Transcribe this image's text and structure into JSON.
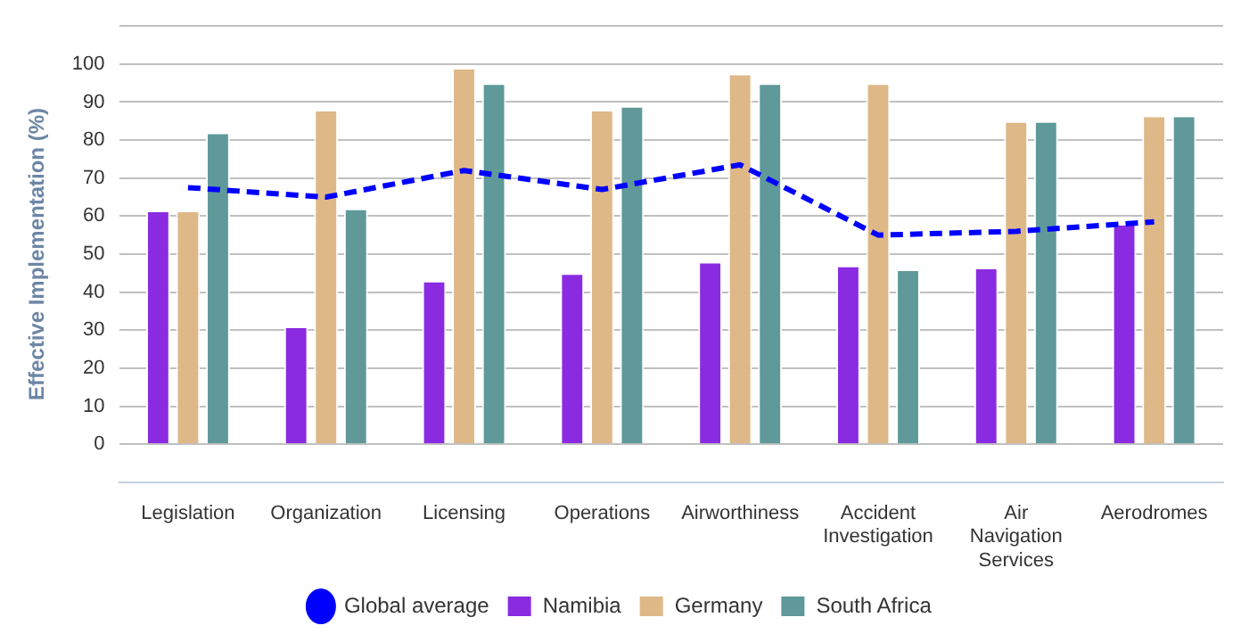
{
  "chart_data": {
    "type": "bar",
    "ylabel": "Effective Implementation (%)",
    "categories": [
      "Legislation",
      "Organization",
      "Licensing",
      "Operations",
      "Airworthiness",
      "Accident Investigation",
      "Air Navigation Services",
      "Aerodromes"
    ],
    "series": [
      {
        "name": "Global average",
        "type": "line",
        "color": "#0000ff",
        "line_style": "dashed",
        "marker": "none",
        "values": [
          67.5,
          65,
          72,
          67,
          73.5,
          55,
          56,
          58.5
        ]
      },
      {
        "name": "Namibia",
        "color": "#8a2be2",
        "values": [
          61.5,
          31,
          43,
          45,
          48,
          47,
          46.5,
          58
        ]
      },
      {
        "name": "Germany",
        "color": "#deb887",
        "values": [
          61.5,
          88,
          99,
          88,
          97.5,
          95,
          85,
          86.5
        ]
      },
      {
        "name": "South Africa",
        "color": "#5f9999",
        "values": [
          82,
          62,
          95,
          89,
          95,
          46,
          85,
          86.5
        ]
      }
    ],
    "ylim": [
      -10,
      110
    ],
    "yticks": [
      0,
      10,
      20,
      30,
      40,
      50,
      60,
      70,
      80,
      90,
      100,
      {
        "value": 110,
        "label": null
      }
    ],
    "grid": "y",
    "legend": "bottom"
  }
}
